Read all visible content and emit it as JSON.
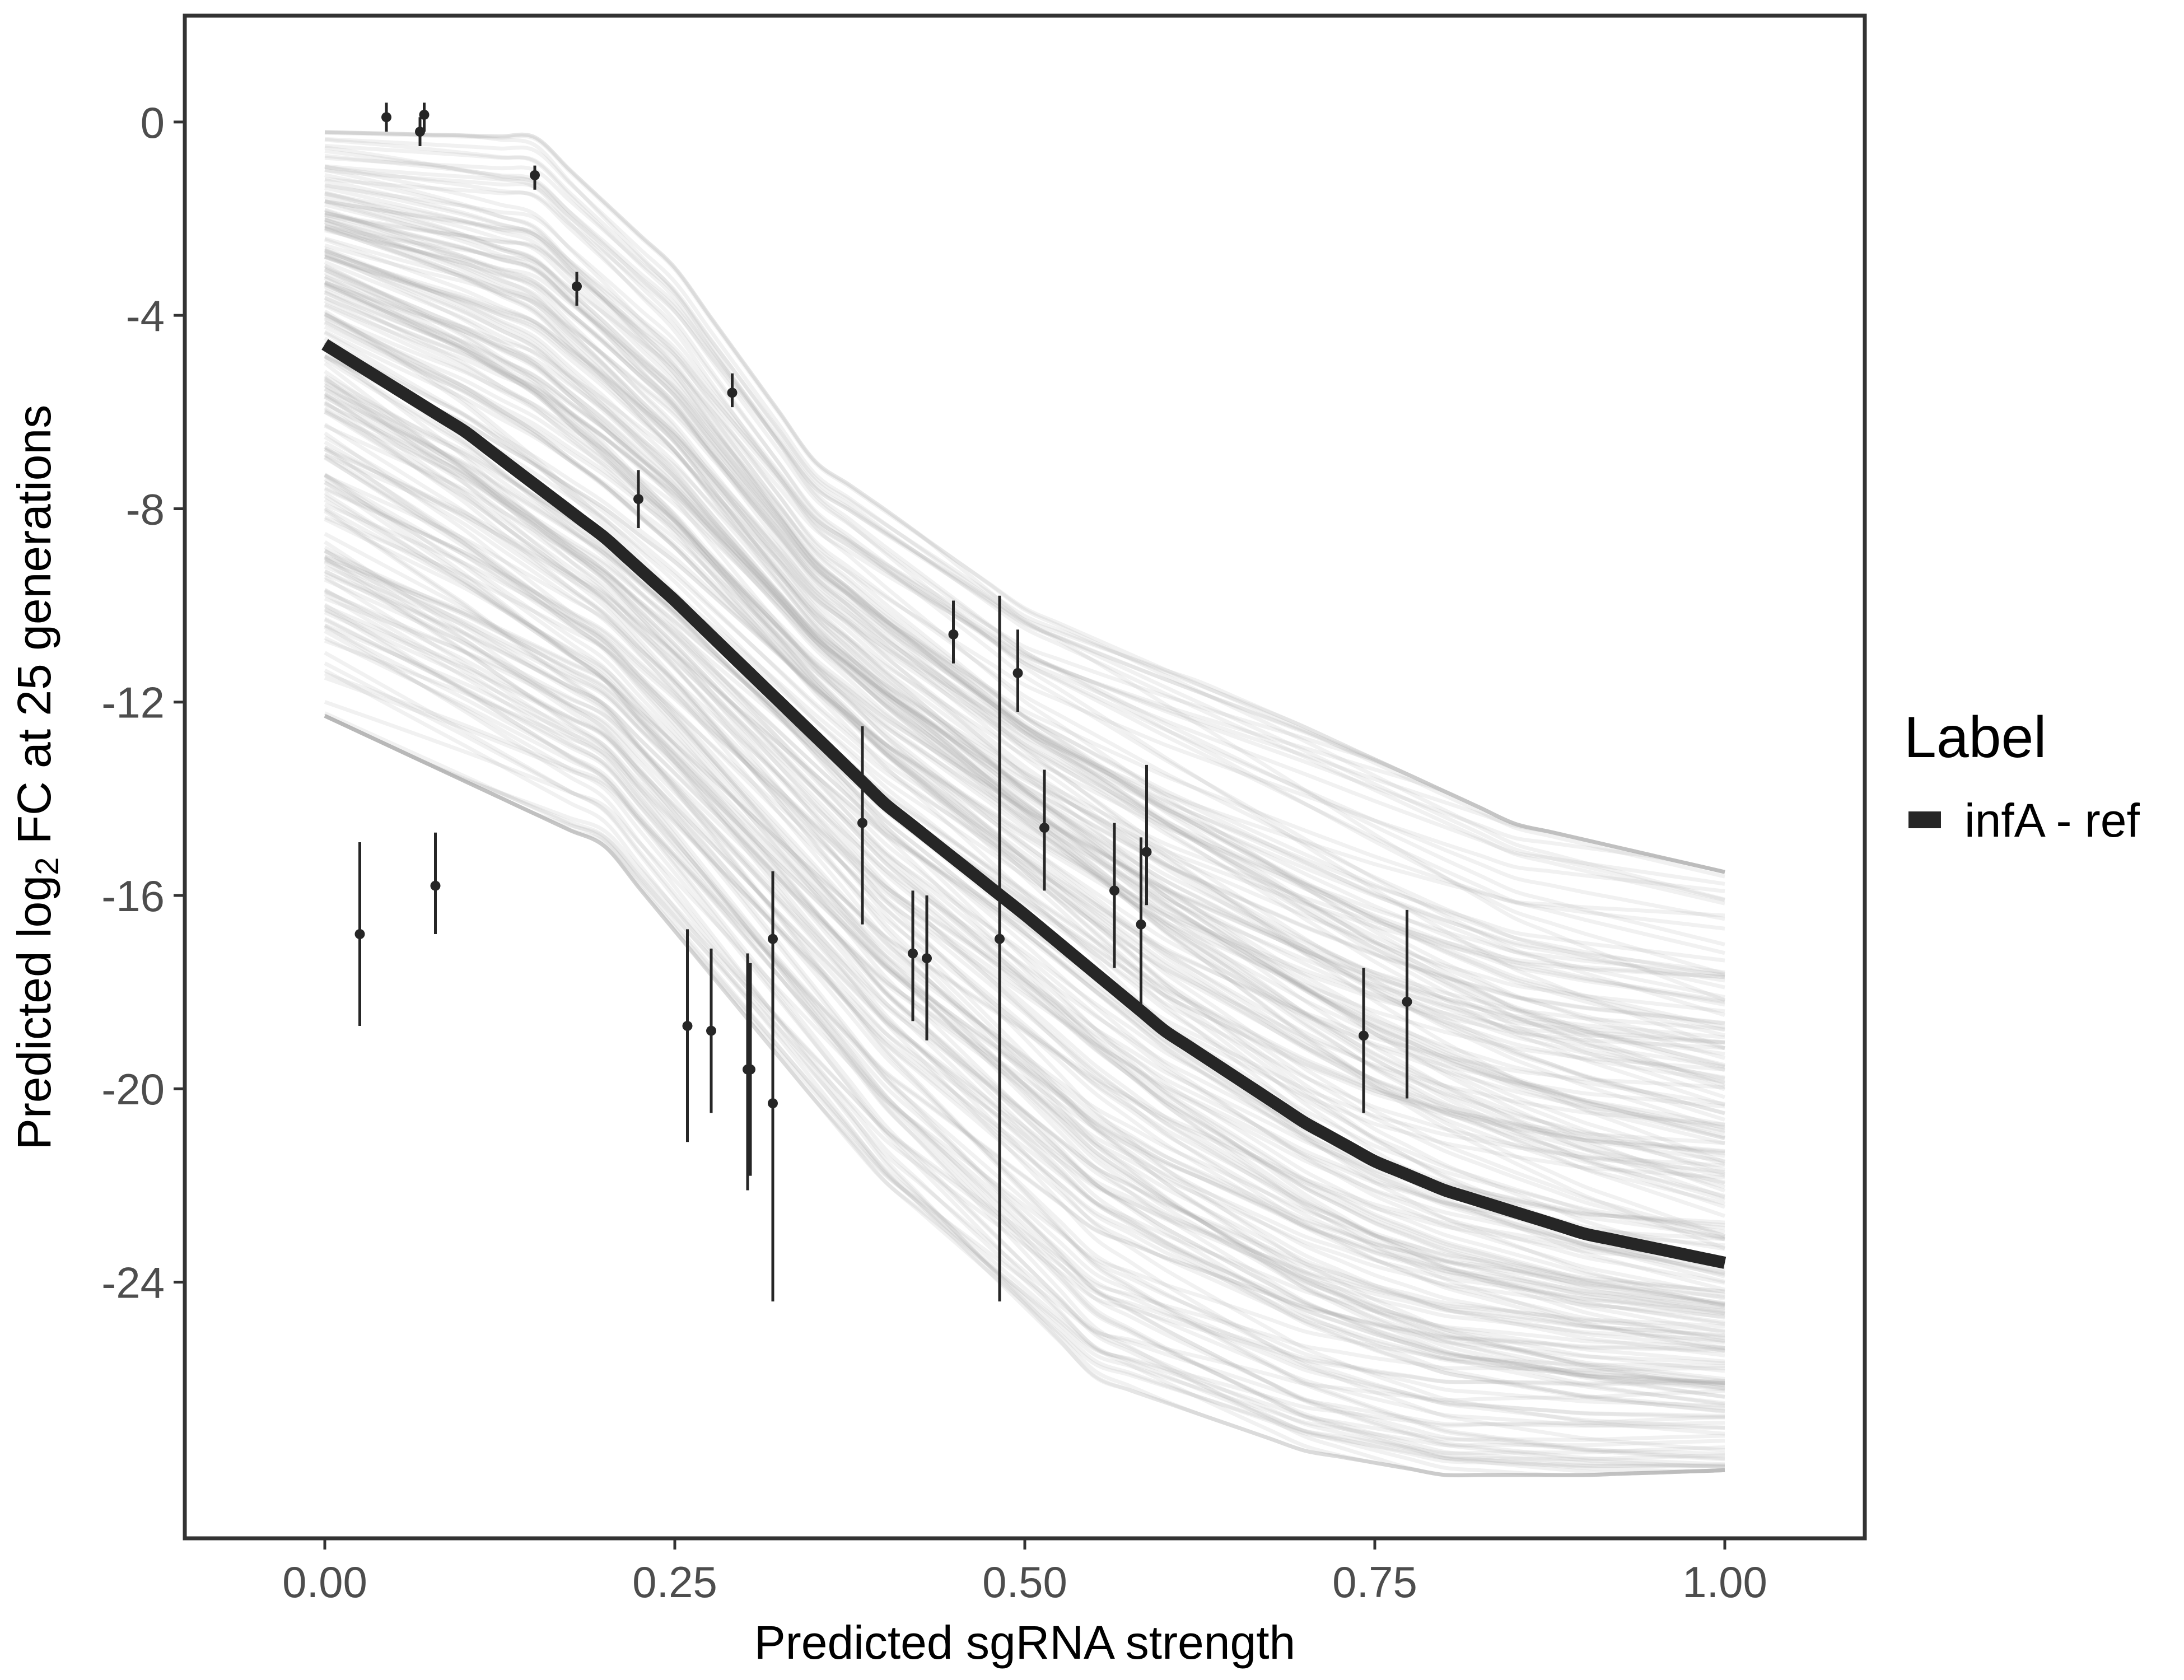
{
  "chart_data": {
    "type": "line",
    "xlabel": "Predicted sgRNA strength",
    "ylabel_parts": [
      "Predicted  log",
      "2",
      " FC at 25 generations"
    ],
    "xlim": [
      -0.1,
      1.1
    ],
    "ylim": [
      -29.3,
      2.2
    ],
    "x_ticks": [
      0.0,
      0.25,
      0.5,
      0.75,
      1.0
    ],
    "x_tick_labels": [
      "0.00",
      "0.25",
      "0.50",
      "0.75",
      "1.00"
    ],
    "y_ticks": [
      0,
      -4,
      -8,
      -12,
      -16,
      -20,
      -24
    ],
    "y_tick_labels": [
      "0",
      "-4",
      "-8",
      "-12",
      "-16",
      "-20",
      "-24"
    ],
    "grid": false,
    "legend": {
      "title": "Label",
      "placement": "right",
      "items": [
        {
          "label": "infA - ref",
          "color": "#262626"
        }
      ]
    },
    "fit_curve": {
      "name": "infA - ref",
      "color": "#262626",
      "x": [
        0.0,
        0.1,
        0.2,
        0.25,
        0.3,
        0.4,
        0.5,
        0.6,
        0.7,
        0.75,
        0.8,
        0.9,
        1.0
      ],
      "y": [
        -4.6,
        -6.4,
        -8.6,
        -9.9,
        -11.3,
        -14.1,
        -16.4,
        -18.8,
        -20.7,
        -21.5,
        -22.1,
        -23.0,
        -23.6
      ]
    },
    "posterior_band": {
      "color": "#aaaaaa",
      "draws": 220,
      "upper": {
        "x": [
          0.0,
          0.15,
          0.25,
          0.35,
          0.5,
          0.7,
          0.85,
          1.0
        ],
        "y": [
          -0.2,
          -0.3,
          -3.0,
          -7.0,
          -10.0,
          -12.5,
          -14.5,
          -15.5
        ]
      },
      "lower": {
        "x": [
          0.0,
          0.2,
          0.3,
          0.4,
          0.55,
          0.7,
          0.8,
          0.9,
          1.0
        ],
        "y": [
          -12.3,
          -15.0,
          -18.5,
          -22.0,
          -26.0,
          -27.5,
          -28.0,
          -28.0,
          -27.9
        ]
      }
    },
    "points": [
      {
        "x": 0.044,
        "y": 0.1,
        "lo": -0.2,
        "hi": 0.4
      },
      {
        "x": 0.068,
        "y": -0.2,
        "lo": -0.5,
        "hi": 0.1
      },
      {
        "x": 0.071,
        "y": 0.15,
        "lo": -0.2,
        "hi": 0.4
      },
      {
        "x": 0.15,
        "y": -1.1,
        "lo": -1.4,
        "hi": -0.9
      },
      {
        "x": 0.18,
        "y": -3.4,
        "lo": -3.8,
        "hi": -3.1
      },
      {
        "x": 0.224,
        "y": -7.8,
        "lo": -8.4,
        "hi": -7.2
      },
      {
        "x": 0.291,
        "y": -5.6,
        "lo": -5.9,
        "hi": -5.2
      },
      {
        "x": 0.025,
        "y": -16.8,
        "lo": -18.7,
        "hi": -14.9
      },
      {
        "x": 0.079,
        "y": -15.8,
        "lo": -16.8,
        "hi": -14.7
      },
      {
        "x": 0.259,
        "y": -18.7,
        "lo": -21.1,
        "hi": -16.7
      },
      {
        "x": 0.276,
        "y": -18.8,
        "lo": -20.5,
        "hi": -17.1
      },
      {
        "x": 0.302,
        "y": -19.6,
        "lo": -22.1,
        "hi": -17.2
      },
      {
        "x": 0.304,
        "y": -19.6,
        "lo": -21.8,
        "hi": -17.4
      },
      {
        "x": 0.32,
        "y": -16.9,
        "lo": -18.3,
        "hi": -15.5
      },
      {
        "x": 0.32,
        "y": -20.3,
        "lo": -24.4,
        "hi": -16.2
      },
      {
        "x": 0.384,
        "y": -14.5,
        "lo": -16.6,
        "hi": -12.5
      },
      {
        "x": 0.42,
        "y": -17.2,
        "lo": -18.6,
        "hi": -15.9
      },
      {
        "x": 0.43,
        "y": -17.3,
        "lo": -19.0,
        "hi": -16.0
      },
      {
        "x": 0.449,
        "y": -10.6,
        "lo": -11.2,
        "hi": -9.9
      },
      {
        "x": 0.482,
        "y": -16.9,
        "lo": -24.4,
        "hi": -9.8
      },
      {
        "x": 0.495,
        "y": -11.4,
        "lo": -12.2,
        "hi": -10.5
      },
      {
        "x": 0.514,
        "y": -14.6,
        "lo": -15.9,
        "hi": -13.4
      },
      {
        "x": 0.564,
        "y": -15.9,
        "lo": -17.5,
        "hi": -14.5
      },
      {
        "x": 0.583,
        "y": -16.6,
        "lo": -18.5,
        "hi": -14.8
      },
      {
        "x": 0.587,
        "y": -15.1,
        "lo": -16.2,
        "hi": -13.3
      },
      {
        "x": 0.742,
        "y": -18.9,
        "lo": -20.5,
        "hi": -17.5
      },
      {
        "x": 0.773,
        "y": -18.2,
        "lo": -20.2,
        "hi": -16.3
      }
    ]
  }
}
